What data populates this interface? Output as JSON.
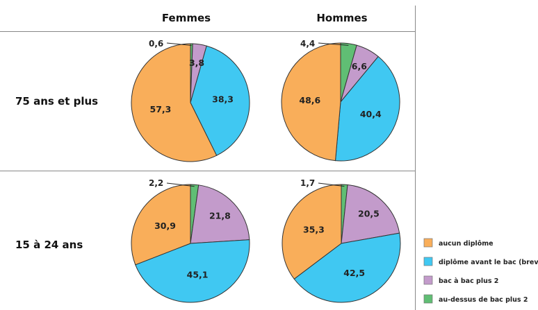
{
  "chart_data": {
    "type": "pie",
    "columns": [
      "Femmes",
      "Hommes"
    ],
    "rows": [
      "75 ans et plus",
      "15 à 24 ans"
    ],
    "categories": [
      "aucun diplôme",
      "diplôme avant le bac (brevet)",
      "bac à bac plus 2",
      "au-dessus de bac plus 2"
    ],
    "colors": [
      "#F9AE5A",
      "#40C8F2",
      "#C39BCB",
      "#60BE74"
    ],
    "legend_position": "bottom-right",
    "pies": [
      {
        "row": "75 ans et plus",
        "column": "Femmes",
        "values": [
          57.3,
          38.3,
          3.8,
          0.6
        ],
        "labels": [
          "57,3",
          "38,3",
          "3,8",
          "0,6"
        ]
      },
      {
        "row": "75 ans et plus",
        "column": "Hommes",
        "values": [
          48.6,
          40.4,
          6.6,
          4.4
        ],
        "labels": [
          "48,6",
          "40,4",
          "6,6",
          "4,4"
        ]
      },
      {
        "row": "15 à 24 ans",
        "column": "Femmes",
        "values": [
          30.9,
          45.1,
          21.8,
          2.2
        ],
        "labels": [
          "30,9",
          "45,1",
          "21,8",
          "2,2"
        ]
      },
      {
        "row": "15 à 24 ans",
        "column": "Hommes",
        "values": [
          35.3,
          42.5,
          20.5,
          1.7
        ],
        "labels": [
          "35,3",
          "42,5",
          "20,5",
          "1,7"
        ]
      }
    ]
  }
}
